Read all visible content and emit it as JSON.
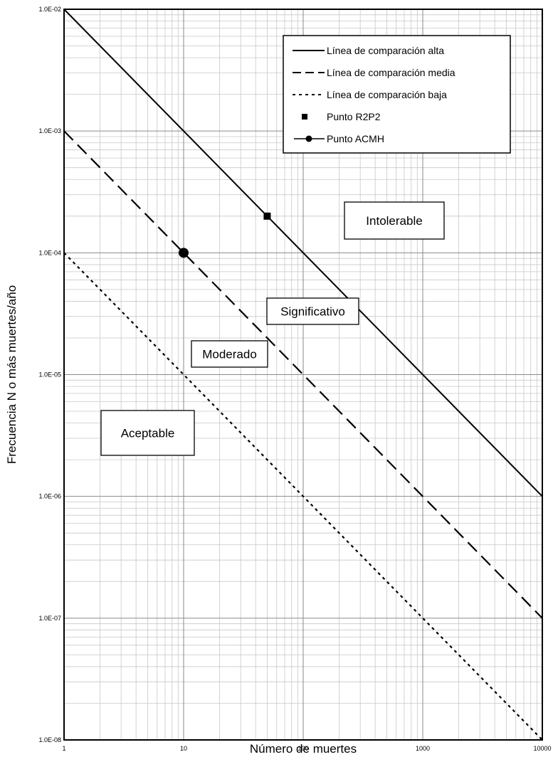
{
  "chart_data": {
    "type": "line",
    "title": "",
    "xlabel": "Número de muertes",
    "ylabel": "Frecuencia N o más muertes/año",
    "xscale": "log",
    "yscale": "log",
    "xlim": [
      1,
      10000
    ],
    "ylim": [
      1e-08,
      0.01
    ],
    "grid": true,
    "legend_position": "top-right",
    "x_tick_labels": [
      "1",
      "10",
      "100",
      "1000",
      "10000"
    ],
    "y_tick_labels": [
      "1.0E-08",
      "1.0E-07",
      "1.0E-06",
      "1.0E-05",
      "1.0E-04",
      "1.0E-03",
      "1.0E-02"
    ],
    "series": [
      {
        "name": "Línea de comparación alta",
        "style": "solid",
        "color": "#000000",
        "x": [
          1,
          10000
        ],
        "y": [
          0.01,
          1e-06
        ]
      },
      {
        "name": "Línea de comparación media",
        "style": "dashed",
        "color": "#000000",
        "x": [
          1,
          10000
        ],
        "y": [
          0.001,
          1e-07
        ]
      },
      {
        "name": "Línea de comparación baja",
        "style": "dotted",
        "color": "#000000",
        "x": [
          1,
          10000
        ],
        "y": [
          0.0001,
          1e-08
        ]
      }
    ],
    "points": [
      {
        "name": "Punto R2P2",
        "marker": "square",
        "x": 50,
        "y": 0.0002
      },
      {
        "name": "Punto ACMH",
        "marker": "circle",
        "x": 10,
        "y": 0.0001
      }
    ],
    "regions": [
      {
        "label": "Intolerable"
      },
      {
        "label": "Significativo"
      },
      {
        "label": "Moderado"
      },
      {
        "label": "Aceptable"
      }
    ]
  }
}
